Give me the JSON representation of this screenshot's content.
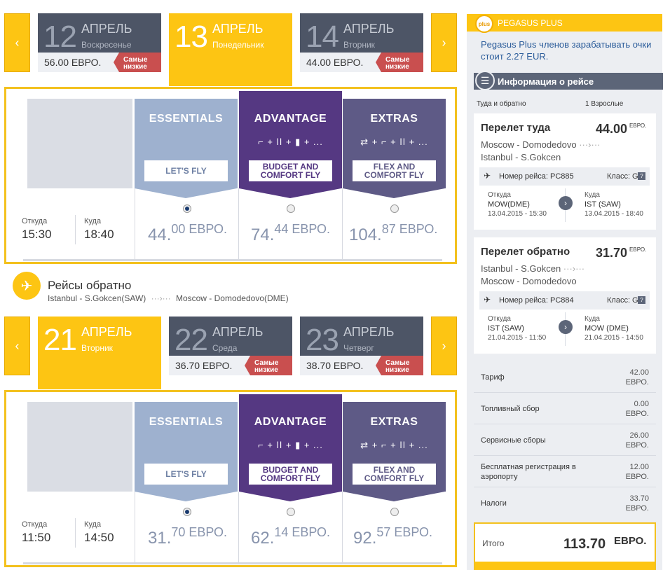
{
  "outbound": {
    "dates": [
      {
        "day": "12",
        "month": "АПРЕЛЬ",
        "weekday": "Воскресенье",
        "price": "56.00 ЕВРО.",
        "badge": "Самые низкие"
      },
      {
        "day": "13",
        "month": "АПРЕЛЬ",
        "weekday": "Понедельник",
        "selected": true
      },
      {
        "day": "14",
        "month": "АПРЕЛЬ",
        "weekday": "Вторник",
        "price": "44.00 ЕВРО.",
        "badge": "Самые низкие"
      }
    ],
    "from_label": "Откуда",
    "to_label": "Куда",
    "dep_time": "15:30",
    "arr_time": "18:40",
    "fares": [
      {
        "title": "ESSENTIALS",
        "icons": "",
        "tag": "LET'S FLY",
        "price_main": "44.",
        "price_rest": "00 ЕВРО.",
        "selected": true
      },
      {
        "title": "ADVANTAGE",
        "icons": "⌐ + ǀǀ + ▮ + ...",
        "tag": "BUDGET AND COMFORT FLY",
        "price_main": "74.",
        "price_rest": "44 ЕВРО.",
        "selected": false
      },
      {
        "title": "EXTRAS",
        "icons": "⇄ + ⌐ + ǀǀ + ...",
        "tag": "FLEX AND COMFORT FLY",
        "price_main": "104.",
        "price_rest": "87 ЕВРО.",
        "selected": false
      }
    ]
  },
  "return_heading": {
    "title": "Рейсы обратно",
    "from": "Istanbul - S.Gokcen(SAW)",
    "arrow": "···›···",
    "to": "Moscow - Domodedovo(DME)"
  },
  "inbound": {
    "dates": [
      {
        "day": "21",
        "month": "АПРЕЛЬ",
        "weekday": "Вторник",
        "selected": true
      },
      {
        "day": "22",
        "month": "АПРЕЛЬ",
        "weekday": "Среда",
        "price": "36.70 ЕВРО.",
        "badge": "Самые низкие"
      },
      {
        "day": "23",
        "month": "АПРЕЛЬ",
        "weekday": "Четверг",
        "price": "38.70 ЕВРО.",
        "badge": "Самые низкие"
      }
    ],
    "from_label": "Откуда",
    "to_label": "Куда",
    "dep_time": "11:50",
    "arr_time": "14:50",
    "fares": [
      {
        "title": "ESSENTIALS",
        "icons": "",
        "tag": "LET'S FLY",
        "price_main": "31.",
        "price_rest": "70 ЕВРО.",
        "selected": true
      },
      {
        "title": "ADVANTAGE",
        "icons": "⌐ + ǀǀ + ▮ + ...",
        "tag": "BUDGET AND COMFORT FLY",
        "price_main": "62.",
        "price_rest": "14 ЕВРО.",
        "selected": false
      },
      {
        "title": "EXTRAS",
        "icons": "⇄ + ⌐ + ǀǀ + ...",
        "tag": "FLEX AND COMFORT FLY",
        "price_main": "92.",
        "price_rest": "57 ЕВРО.",
        "selected": false
      }
    ]
  },
  "arrows": {
    "prev": "‹",
    "next": "›"
  },
  "sidebar": {
    "plus_title": "PEGASUS PLUS",
    "plus_logo": "plus",
    "plus_text": "Pegasus Plus членов зарабатывать очки стоит 2.27 EUR.",
    "info_title": "Информация о рейсе",
    "trip_type": "Туда и обратно",
    "pax": "1 Взрослые",
    "outbound": {
      "title": "Перелет туда",
      "price": "44.00",
      "cur": "ЕВРО.",
      "route1": "Moscow - Domodedovo",
      "route2": "Istanbul - S.Gokcen",
      "flight": "Номер рейса: PC885",
      "class": "Класс: G",
      "from_label": "Откуда",
      "from_code": "MOW(DME)",
      "from_time": "13.04.2015 - 15:30",
      "to_label": "Куда",
      "to_code": "IST (SAW)",
      "to_time": "13.04.2015 - 18:40"
    },
    "inbound": {
      "title": "Перелет обратно",
      "price": "31.70",
      "cur": "ЕВРО.",
      "route1": "Istanbul - S.Gokcen",
      "route2": "Moscow - Domodedovo",
      "flight": "Номер рейса: PC884",
      "class": "Класс: G",
      "from_label": "Откуда",
      "from_code": "IST (SAW)",
      "from_time": "21.04.2015 - 11:50",
      "to_label": "Куда",
      "to_code": "MOW (DME)",
      "to_time": "21.04.2015 - 14:50"
    },
    "costs": [
      {
        "label": "Тариф",
        "value": "42.00",
        "cur": "ЕВРО."
      },
      {
        "label": "Топливный сбор",
        "value": "0.00",
        "cur": "ЕВРО."
      },
      {
        "label": "Сервисные сборы",
        "value": "26.00",
        "cur": "ЕВРО."
      },
      {
        "label": "Бесплатная регистрация в аэропорту",
        "value": "12.00",
        "cur": "ЕВРО."
      },
      {
        "label": "Налоги",
        "value": "33.70",
        "cur": "ЕВРО."
      }
    ],
    "total_label": "Итого",
    "total_value": "113.70",
    "total_cur": "ЕВРО."
  }
}
